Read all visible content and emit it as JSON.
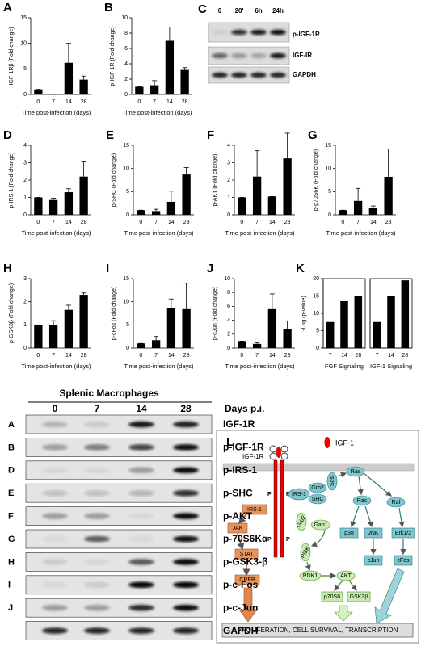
{
  "chart_data": [
    {
      "panel_label": "A",
      "type": "bar",
      "y_label": "IGF-1Rβ (Fold change)",
      "x_label": "Time post-infection (days)",
      "categories": [
        "0",
        "7",
        "14",
        "28"
      ],
      "values": [
        1,
        0,
        6.2,
        2.9
      ],
      "errors": [
        0,
        0,
        3.8,
        0.7
      ],
      "ylim": [
        0,
        15
      ],
      "yticks": [
        0,
        5,
        10,
        15
      ],
      "color": "#000000"
    },
    {
      "panel_label": "B",
      "type": "bar",
      "y_label": "p-IGF-1R (Fold change)",
      "x_label": "Time post-infection (days)",
      "categories": [
        "0",
        "7",
        "14",
        "28"
      ],
      "values": [
        1,
        1.2,
        7,
        3.2
      ],
      "errors": [
        0,
        0.6,
        1.8,
        0.3
      ],
      "ylim": [
        0,
        10
      ],
      "yticks": [
        0,
        2,
        4,
        6,
        8,
        10
      ],
      "color": "#000000"
    },
    {
      "panel_label": "D",
      "type": "bar",
      "y_label": "p-IRS-1 (Fold change)",
      "x_label": "Time post-infection (days)",
      "categories": [
        "0",
        "7",
        "14",
        "28"
      ],
      "values": [
        1,
        0.85,
        1.3,
        2.2
      ],
      "errors": [
        0,
        0.1,
        0.2,
        0.85
      ],
      "ylim": [
        0,
        4
      ],
      "yticks": [
        0,
        1,
        2,
        3,
        4
      ],
      "color": "#000000"
    },
    {
      "panel_label": "E",
      "type": "bar",
      "y_label": "p-SHC (Fold change)",
      "x_label": "Time post-infection (days)",
      "categories": [
        "0",
        "7",
        "14",
        "28"
      ],
      "values": [
        1,
        0.8,
        2.8,
        8.7
      ],
      "errors": [
        0,
        0.4,
        2.3,
        1.5
      ],
      "ylim": [
        0,
        15
      ],
      "yticks": [
        0,
        5,
        10,
        15
      ],
      "color": "#000000"
    },
    {
      "panel_label": "F",
      "type": "bar",
      "y_label": "p-AKT (Fold change)",
      "x_label": "Time post-infection (days)",
      "categories": [
        "0",
        "7",
        "14",
        "28"
      ],
      "values": [
        1,
        2.2,
        1.05,
        3.25
      ],
      "errors": [
        0,
        1.5,
        0,
        1.45
      ],
      "ylim": [
        0,
        4
      ],
      "yticks": [
        0,
        1,
        2,
        3,
        4
      ],
      "color": "#000000"
    },
    {
      "panel_label": "G",
      "type": "bar",
      "y_label": "p-p70S6K (Fold change)",
      "x_label": "Time post-infection (days)",
      "categories": [
        "0",
        "7",
        "14",
        "28"
      ],
      "values": [
        1,
        3,
        1.5,
        8.2
      ],
      "errors": [
        0,
        2.7,
        0.4,
        6
      ],
      "ylim": [
        0,
        15
      ],
      "yticks": [
        0,
        5,
        10,
        15
      ],
      "color": "#000000"
    },
    {
      "panel_label": "H",
      "type": "bar",
      "y_label": "p-GSK3β (Fold change)",
      "x_label": "Time post-infection (days)",
      "categories": [
        "0",
        "7",
        "14",
        "28"
      ],
      "values": [
        1,
        0.98,
        1.65,
        2.3
      ],
      "errors": [
        0,
        0.2,
        0.2,
        0.08
      ],
      "ylim": [
        0,
        3
      ],
      "yticks": [
        0,
        1,
        2,
        3
      ],
      "color": "#000000"
    },
    {
      "panel_label": "I",
      "type": "bar",
      "y_label": "p-cFos (Fold change)",
      "x_label": "Time post-infection (days)",
      "categories": [
        "0",
        "7",
        "14",
        "28"
      ],
      "values": [
        1,
        1.7,
        8.7,
        8.4
      ],
      "errors": [
        0,
        0.8,
        1.9,
        5.6
      ],
      "ylim": [
        0,
        15
      ],
      "yticks": [
        0,
        5,
        10,
        15
      ],
      "color": "#000000"
    },
    {
      "panel_label": "J",
      "type": "bar",
      "y_label": "p-cJun (Fold change)",
      "x_label": "Time post-infection (days)",
      "categories": [
        "0",
        "7",
        "14",
        "28"
      ],
      "values": [
        1,
        0.6,
        5.6,
        2.7
      ],
      "errors": [
        0,
        0.15,
        2.2,
        1.2
      ],
      "ylim": [
        0,
        10
      ],
      "yticks": [
        0,
        2,
        4,
        6,
        8,
        10
      ],
      "color": "#000000"
    },
    {
      "panel_label": "K",
      "type": "bar",
      "y_label": "-Log (p-value)",
      "x_label": "FGF Signaling",
      "categories": [
        "7",
        "14",
        "28"
      ],
      "values": [
        7.5,
        13.5,
        15
      ],
      "ylim": [
        0,
        20
      ],
      "yticks": [
        0,
        5,
        10,
        15,
        20
      ],
      "color": "#000000",
      "frame": true
    },
    {
      "type": "bar",
      "x_label": "IGF-1 Signaling",
      "categories": [
        "7",
        "14",
        "28"
      ],
      "values": [
        7.5,
        15,
        19.5
      ],
      "ylim": [
        0,
        20
      ],
      "color": "#000000",
      "frame": true
    }
  ],
  "blot_c": {
    "panel_label": "C",
    "lanes": [
      "0",
      "20'",
      "6h",
      "24h"
    ],
    "rows": [
      "p-IGF-1R",
      "IGF-IR",
      "GAPDH"
    ]
  },
  "blot_main": {
    "title": "Splenic Macrophages",
    "time_header": "Days p.i.",
    "lanes": [
      "0",
      "7",
      "14",
      "28"
    ],
    "rows": [
      {
        "panel": "A",
        "label": "IGF-1R"
      },
      {
        "panel": "B",
        "label": "p-IGF-1R"
      },
      {
        "panel": "D",
        "label": "p-IRS-1"
      },
      {
        "panel": "E",
        "label": "p-SHC"
      },
      {
        "panel": "F",
        "label": "p-AKT"
      },
      {
        "panel": "G",
        "label": "p-70S6Kα"
      },
      {
        "panel": "H",
        "label": "p-GSK3-β"
      },
      {
        "panel": "I",
        "label": "p-c-Fos"
      },
      {
        "panel": "J",
        "label": "p-c-Jun"
      },
      {
        "label": "GAPDH"
      }
    ]
  },
  "diagram": {
    "panel_label": "L",
    "ligand": "IGF-1",
    "receptor": "IGF-1R",
    "phospho": [
      "P",
      "P",
      "P",
      "P"
    ],
    "nodes": [
      "IRS-1",
      "JAK",
      "STAT",
      "CREB",
      "IRS-1",
      "Grb2",
      "SHC",
      "Sos",
      "Ras",
      "Rac",
      "Raf",
      "p38",
      "JNK",
      "Erk1/2",
      "cJun",
      "cFos",
      "Grb2",
      "Gab1",
      "PI3K",
      "PDK1",
      "AKT",
      "p70S6",
      "GSK3β"
    ],
    "output": "PROLIFERATION, CELL SURVIVAL, TRANSCRIPTION"
  }
}
